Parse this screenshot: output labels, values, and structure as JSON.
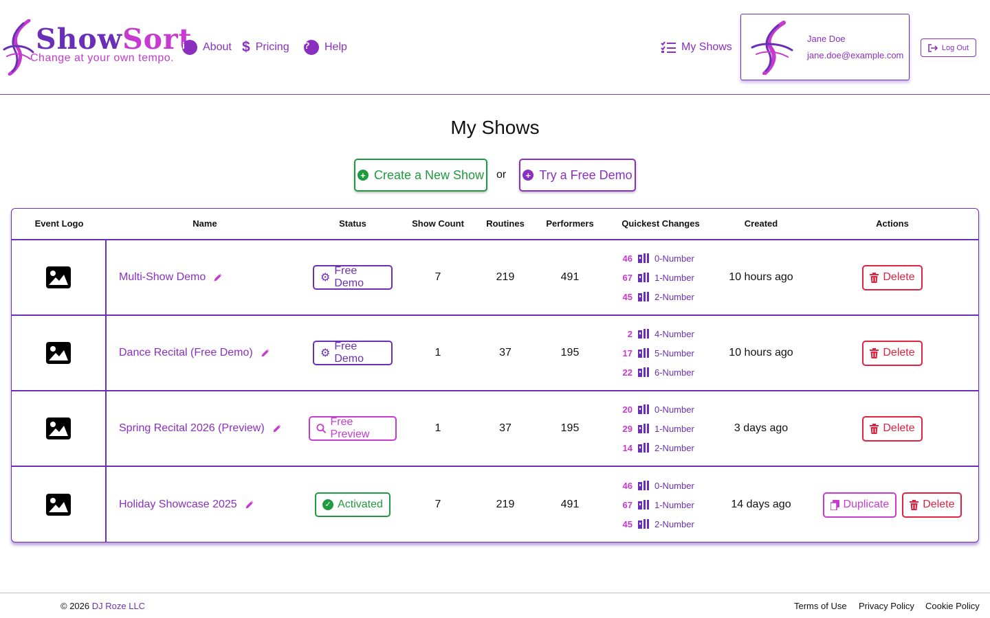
{
  "brand": {
    "name_part1": "Show",
    "name_part2": "Sort",
    "tagline": "Change at your own tempo."
  },
  "nav": {
    "about": "About",
    "pricing": "Pricing",
    "help": "Help",
    "my_shows": "My Shows"
  },
  "user": {
    "name": "Jane Doe",
    "email": "jane.doe@example.com",
    "logout": "Log Out"
  },
  "page": {
    "title": "My Shows",
    "create_button": "Create a New Show",
    "or": "or",
    "demo_button": "Try a Free Demo"
  },
  "table": {
    "headers": {
      "event_logo": "Event Logo",
      "name": "Name",
      "status": "Status",
      "show_count": "Show Count",
      "routines": "Routines",
      "performers": "Performers",
      "quickest_changes": "Quickest Changes",
      "created": "Created",
      "actions": "Actions"
    },
    "rows": [
      {
        "name": "Multi-Show Demo",
        "status": "Free Demo",
        "show_count": "7",
        "routines": "219",
        "performers": "491",
        "quickest": [
          {
            "count": "46",
            "label": "0-Number"
          },
          {
            "count": "67",
            "label": "1-Number"
          },
          {
            "count": "45",
            "label": "2-Number"
          }
        ],
        "created": "10 hours ago",
        "delete": "Delete"
      },
      {
        "name": "Dance Recital (Free Demo)",
        "status": "Free Demo",
        "show_count": "1",
        "routines": "37",
        "performers": "195",
        "quickest": [
          {
            "count": "2",
            "label": "4-Number"
          },
          {
            "count": "17",
            "label": "5-Number"
          },
          {
            "count": "22",
            "label": "6-Number"
          }
        ],
        "created": "10 hours ago",
        "delete": "Delete"
      },
      {
        "name": "Spring Recital 2026 (Preview)",
        "status": "Free Preview",
        "show_count": "1",
        "routines": "37",
        "performers": "195",
        "quickest": [
          {
            "count": "20",
            "label": "0-Number"
          },
          {
            "count": "29",
            "label": "1-Number"
          },
          {
            "count": "14",
            "label": "2-Number"
          }
        ],
        "created": "3 days ago",
        "delete": "Delete"
      },
      {
        "name": "Holiday Showcase 2025",
        "status": "Activated",
        "show_count": "7",
        "routines": "219",
        "performers": "491",
        "quickest": [
          {
            "count": "46",
            "label": "0-Number"
          },
          {
            "count": "67",
            "label": "1-Number"
          },
          {
            "count": "45",
            "label": "2-Number"
          }
        ],
        "created": "14 days ago",
        "duplicate": "Duplicate",
        "delete": "Delete"
      }
    ]
  },
  "footer": {
    "copyright": "© 2026",
    "company": "DJ Roze LLC",
    "terms": "Terms of Use",
    "privacy": "Privacy Policy",
    "cookie": "Cookie Policy"
  },
  "colors": {
    "purple": "#6a2fb8",
    "magenta": "#c63ad0",
    "link_purple": "#8a2fc0",
    "green": "#1f9a3d",
    "red": "#e0213f"
  }
}
